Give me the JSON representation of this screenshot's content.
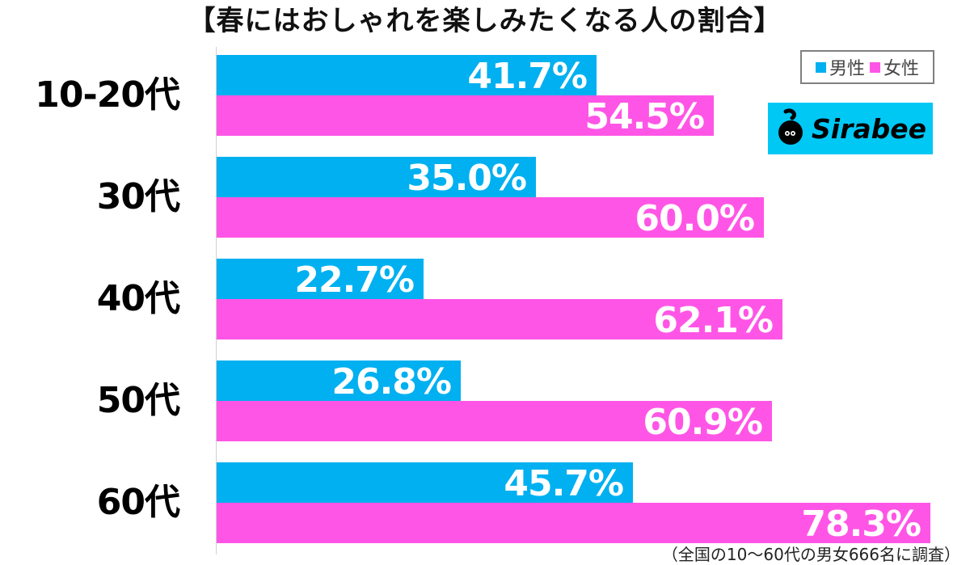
{
  "title": "【春にはおしゃれを楽しみたくなる人の割合】",
  "legend": {
    "male_label": "男性",
    "female_label": "女性"
  },
  "logo": {
    "text": "Sirabee"
  },
  "footnote": "（全国の10〜60代の男女666名に調査）",
  "colors": {
    "male": "#00b0f0",
    "female": "#ff55e6",
    "logo_bg": "#00c8f5"
  },
  "groups": [
    {
      "label": "10-20代",
      "male": "41.7%",
      "female": "54.5%"
    },
    {
      "label": "30代",
      "male": "35.0%",
      "female": "60.0%"
    },
    {
      "label": "40代",
      "male": "22.7%",
      "female": "62.1%"
    },
    {
      "label": "50代",
      "male": "26.8%",
      "female": "60.9%"
    },
    {
      "label": "60代",
      "male": "45.7%",
      "female": "78.3%"
    }
  ],
  "chart_data": {
    "type": "bar",
    "orientation": "horizontal",
    "title": "【春にはおしゃれを楽しみたくなる人の割合】",
    "categories": [
      "10-20代",
      "30代",
      "40代",
      "50代",
      "60代"
    ],
    "series": [
      {
        "name": "男性",
        "color": "#00b0f0",
        "values": [
          41.7,
          35.0,
          22.7,
          26.8,
          45.7
        ]
      },
      {
        "name": "女性",
        "color": "#ff55e6",
        "values": [
          54.5,
          60.0,
          62.1,
          60.9,
          78.3
        ]
      }
    ],
    "xlabel": "",
    "ylabel": "",
    "unit": "%",
    "data_labels": true,
    "grid": false,
    "legend_position": "top-right",
    "annotation": "（全国の10〜60代の男女666名に調査）",
    "xlim": [
      0,
      80
    ]
  }
}
